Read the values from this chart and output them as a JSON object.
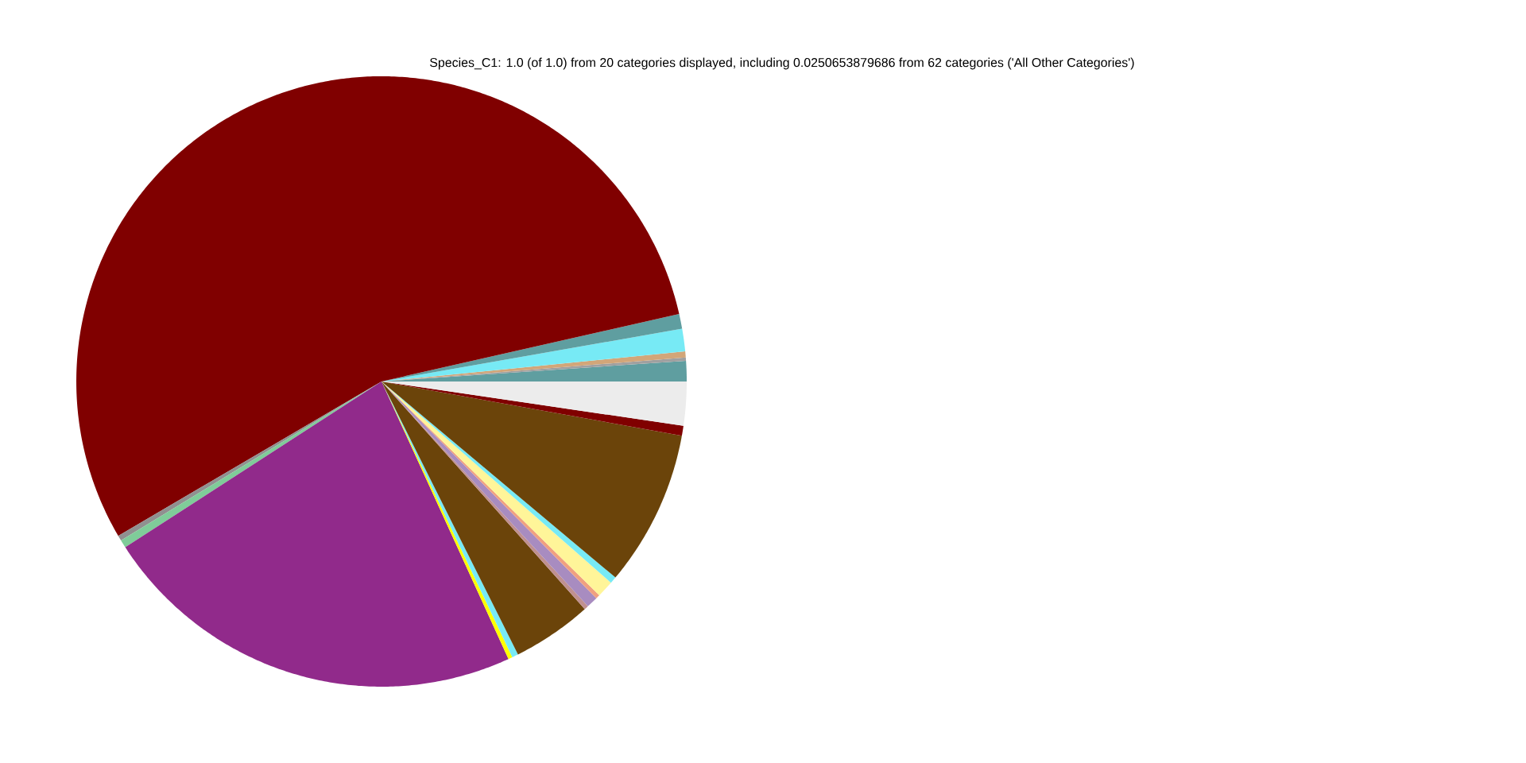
{
  "chart_data": {
    "type": "pie",
    "title": "Species_C1: 1.0 (of 1.0) from 20 categories displayed, including 0.0250653879686 from 62 categories ('All Other Categories')",
    "categories": [
      null,
      null,
      null,
      null,
      null,
      null,
      null,
      null,
      null,
      null,
      null,
      null,
      null,
      null,
      null,
      null,
      null,
      null,
      null,
      null
    ],
    "values": [
      1.08,
      0.17,
      0.33,
      1.19,
      0.78,
      54.89,
      0.28,
      0.42,
      22.69,
      0.22,
      0.33,
      4.22,
      0.22,
      0.61,
      0.22,
      0.89,
      0.36,
      8.25,
      0.53,
      2.32
    ],
    "colors": [
      "#5f9ea0",
      "#a0a0a0",
      "#d2a679",
      "#77eaf5",
      "#5f9ea0",
      "#800000",
      "#909090",
      "#7fcc99",
      "#912a8b",
      "#ffff00",
      "#77eaf5",
      "#6b440a",
      "#c09090",
      "#a88cc0",
      "#f0a080",
      "#fff599",
      "#77eaf5",
      "#6b440a",
      "#800000",
      "#ececec"
    ]
  }
}
